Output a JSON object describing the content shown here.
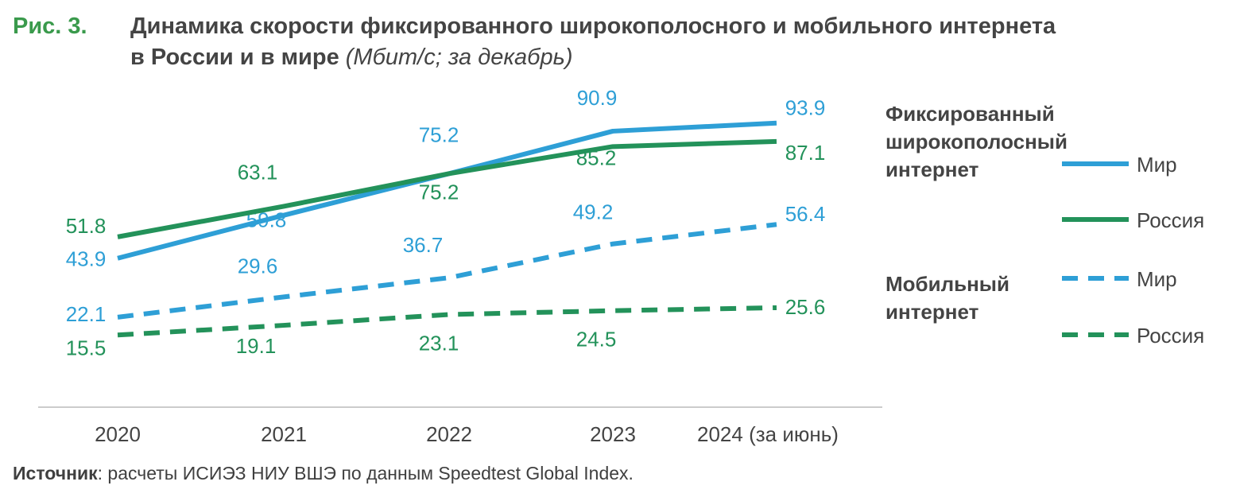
{
  "title": {
    "fig_label": "Рис. 3.",
    "line1": "Динамика скорости фиксированного широкополосного и мобильного интернета",
    "line2": "в России и в мире",
    "subtitle": "(Мбит/с; за декабрь)"
  },
  "source": {
    "label": "Источник",
    "text": ": расчеты ИСИЭЗ НИУ ВШЭ по данным Speedtest Global Index."
  },
  "colors": {
    "world": "#2e9fd6",
    "russia": "#23925a",
    "axis": "#cccccc",
    "text": "#444444"
  },
  "chart_data": {
    "type": "line",
    "categories": [
      "2020",
      "2021",
      "2022",
      "2023",
      "2024 (за июнь)"
    ],
    "ylim": [
      0,
      100
    ],
    "grid": false,
    "legend_position": "right",
    "legend_groups": [
      {
        "title": [
          "Фиксированный",
          "широкополосный",
          "интернет"
        ]
      },
      {
        "title": [
          "Мобильный",
          "интернет"
        ]
      }
    ],
    "series": [
      {
        "name": "Мир",
        "group": "fixed",
        "color": "#2e9fd6",
        "dashed": false,
        "values": [
          43.9,
          59.8,
          75.2,
          90.9,
          93.9
        ]
      },
      {
        "name": "Россия",
        "group": "fixed",
        "color": "#23925a",
        "dashed": false,
        "values": [
          51.8,
          63.1,
          75.2,
          85.2,
          87.1
        ]
      },
      {
        "name": "Мир",
        "group": "mobile",
        "color": "#2e9fd6",
        "dashed": true,
        "values": [
          22.1,
          29.6,
          36.7,
          49.2,
          56.4
        ]
      },
      {
        "name": "Россия",
        "group": "mobile",
        "color": "#23925a",
        "dashed": true,
        "values": [
          15.5,
          19.1,
          23.1,
          24.5,
          25.6
        ]
      }
    ]
  }
}
